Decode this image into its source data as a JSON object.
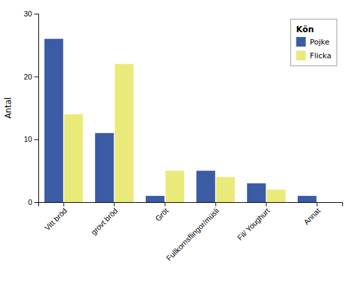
{
  "chart_data": {
    "type": "bar",
    "categories": [
      "Vitt bröd",
      "grovt bröd",
      "Gröt",
      "Fullkornsflingor/müsli",
      "Fil/ Youghurt",
      "Annat"
    ],
    "series": [
      {
        "name": "Pojke",
        "color": "#3B5BA5",
        "values": [
          26,
          11,
          1,
          5,
          3,
          1
        ]
      },
      {
        "name": "Flicka",
        "color": "#EAEA7A",
        "values": [
          14,
          22,
          5,
          4,
          2,
          0
        ]
      }
    ],
    "ylabel": "Antal",
    "legend_title": "Kön",
    "legend": "upper right",
    "ylim": [
      0,
      30
    ],
    "yticks": [
      0,
      10,
      20,
      30
    ],
    "grid": false
  }
}
